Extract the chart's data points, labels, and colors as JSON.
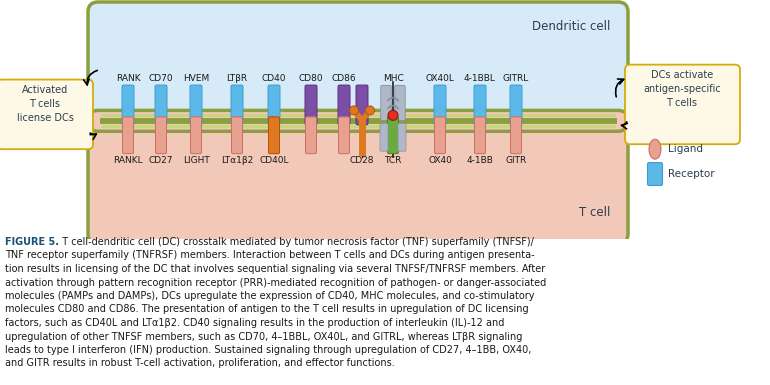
{
  "background_color": "#ffffff",
  "dc_cell_color": "#d6eaf8",
  "dc_cell_border_outer": "#8b9e40",
  "dc_cell_border_inner": "#c5d87a",
  "t_cell_color": "#f2c9b8",
  "t_cell_border_outer": "#8b9e40",
  "t_cell_border_inner": "#c5d87a",
  "dc_label": "Dendritic cell",
  "t_label": "T cell",
  "left_box_text": "Activated\nT cells\nlicense DCs",
  "right_box_text": "DCs activate\nantigen-specific\nT cells",
  "left_box_color": "#fef9e7",
  "right_box_color": "#fef9e7",
  "left_box_border": "#d4ac0d",
  "right_box_border": "#d4ac0d",
  "legend_ligand": "Ligand",
  "legend_receptor": "Receptor",
  "figure_label": "FIGURE 5.",
  "caption_line1": "  T cell-dendritic cell (DC) crosstalk mediated by tumor necrosis factor (TNF) superfamily (TNFSF)/",
  "caption_line2": "TNF receptor superfamily (TNFRSF) members. Interaction between T cells and DCs during antigen presenta-",
  "caption_line3": "tion results in licensing of the DC that involves sequential signaling via several TNFSF/TNFRSF members. After",
  "caption_line4": "activation through pattern recognition receptor (PRR)-mediated recognition of pathogen- or danger-associated",
  "caption_line5": "molecules (PAMPs and DAMPs), DCs upregulate the expression of CD40, MHC molecules, and co-stimulatory",
  "caption_line6": "molecules CD80 and CD86. The presentation of antigen to the T cell results in upregulation of DC licensing",
  "caption_line7": "factors, such as CD40L and LTα1β2. CD40 signaling results in the production of interleukin (IL)-12 and",
  "caption_line8": "upregulation of other TNFSF members, such as CD70, 4–1BBL, OX40L, and GITRL, whereas LTβR signaling",
  "caption_line9": "leads to type I interferon (IFN) production. Sustained signaling through upregulation of CD27, 4–1BB, OX40,",
  "caption_line10": "and GITR results in robust T-cell activation, proliferation, and effector functions.",
  "receptor_blue": "#5bb8e8",
  "receptor_blue_edge": "#3a9fd0",
  "ligand_salmon": "#e8a090",
  "ligand_salmon_edge": "#c87060",
  "receptor_purple": "#7b4fa6",
  "receptor_purple_edge": "#5a3080",
  "receptor_orange": "#e07820",
  "receptor_orange_edge": "#b05010",
  "tcr_green": "#6aaa40",
  "tcr_green_edge": "#4a8020",
  "tcr_grey": "#b0b8c8",
  "mhc_purple": "#9888c0",
  "mhc_red_dot": "#e03020"
}
